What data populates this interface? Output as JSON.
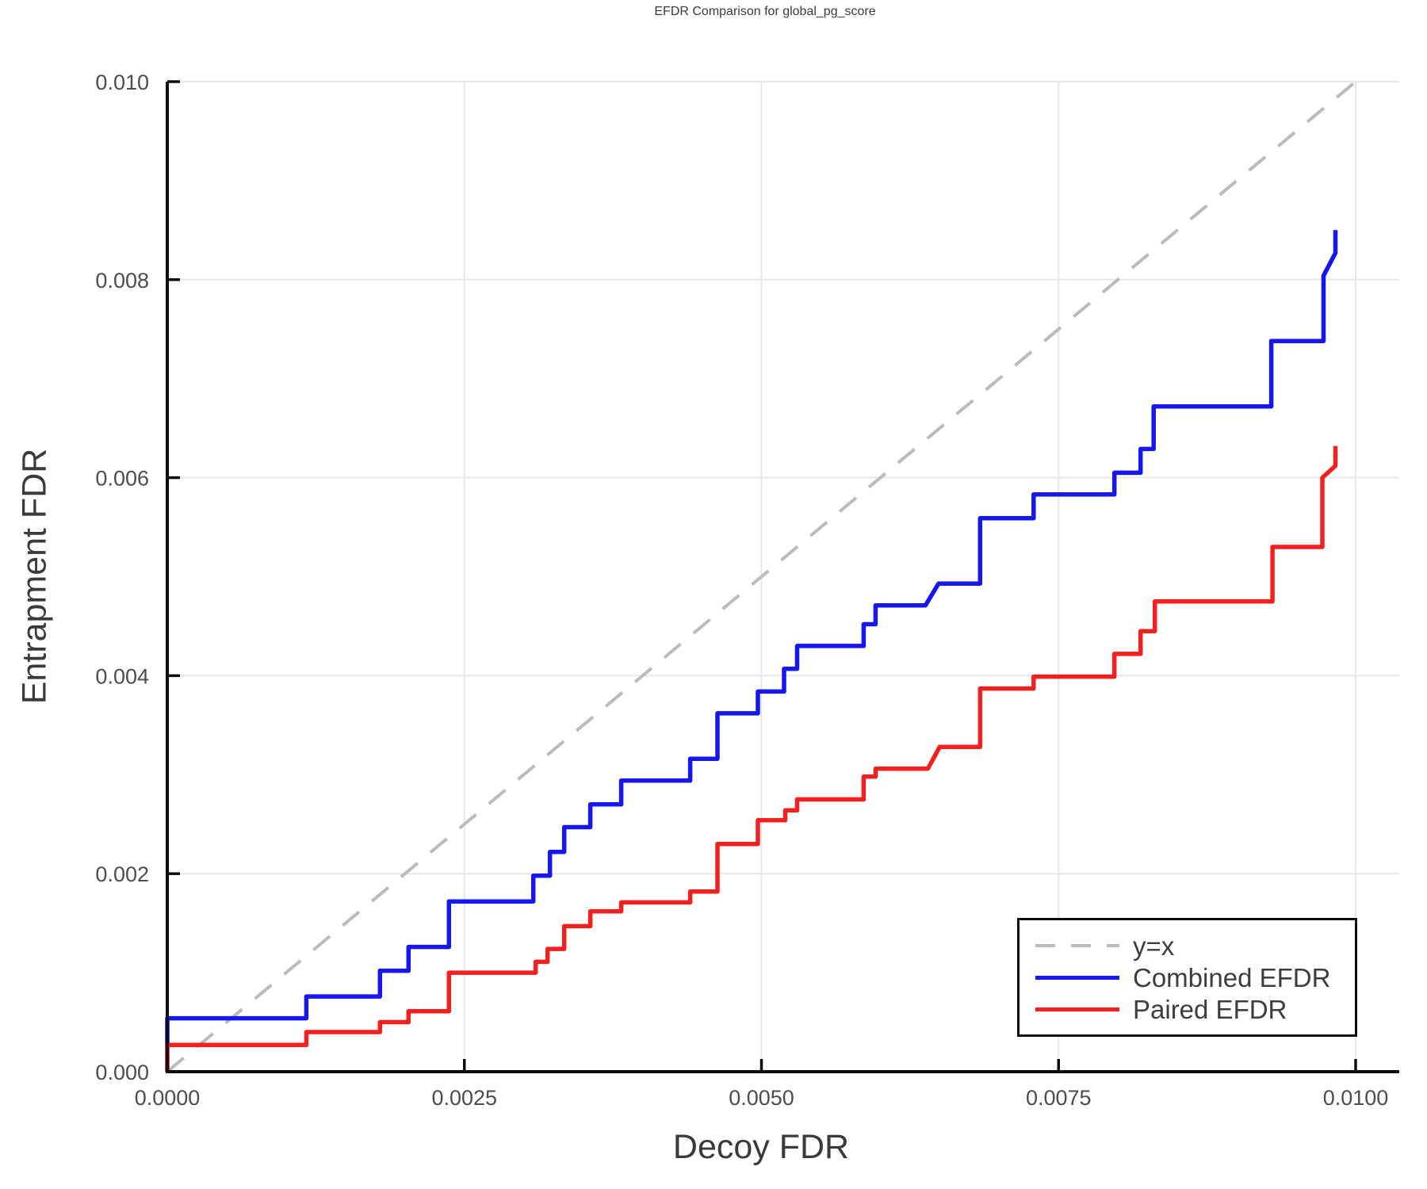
{
  "title": "EFDR Comparison for global_pg_score",
  "chart_data": {
    "type": "line",
    "subtype": "step",
    "title": "EFDR Comparison for global_pg_score",
    "xlabel": "Decoy FDR",
    "ylabel": "Entrapment FDR",
    "xlim": [
      0.0,
      0.01037
    ],
    "ylim": [
      0.0,
      0.01
    ],
    "grid": true,
    "tick_direction": "in",
    "x_ticks": {
      "values": [
        0.0,
        0.0025,
        0.005,
        0.0075,
        0.01
      ],
      "labels": [
        "0.0000",
        "0.0025",
        "0.0050",
        "0.0075",
        "0.0100"
      ]
    },
    "y_ticks": {
      "values": [
        0.0,
        0.002,
        0.004,
        0.006,
        0.008,
        0.01
      ],
      "labels": [
        "0.000",
        "0.002",
        "0.004",
        "0.006",
        "0.008",
        "0.010"
      ]
    },
    "legend_position": "bottom-right",
    "reference_line": {
      "name": "y=x",
      "style": "dashed",
      "color": "#bbbbbb",
      "from": [
        0.0,
        0.0
      ],
      "to": [
        0.01,
        0.01
      ]
    },
    "series": [
      {
        "name": "Combined EFDR",
        "color": "#1616f0",
        "points": [
          [
            0.0,
            0.0
          ],
          [
            0.0,
            0.00054
          ],
          [
            0.00117,
            0.00054
          ],
          [
            0.00117,
            0.00076
          ],
          [
            0.00179,
            0.00076
          ],
          [
            0.00179,
            0.00102
          ],
          [
            0.00203,
            0.00102
          ],
          [
            0.00203,
            0.00126
          ],
          [
            0.00237,
            0.00126
          ],
          [
            0.00237,
            0.00172
          ],
          [
            0.00308,
            0.00172
          ],
          [
            0.00308,
            0.00198
          ],
          [
            0.00322,
            0.00198
          ],
          [
            0.00322,
            0.00222
          ],
          [
            0.00334,
            0.00222
          ],
          [
            0.00334,
            0.00247
          ],
          [
            0.00356,
            0.00247
          ],
          [
            0.00356,
            0.0027
          ],
          [
            0.00382,
            0.0027
          ],
          [
            0.00382,
            0.00294
          ],
          [
            0.0044,
            0.00294
          ],
          [
            0.0044,
            0.00316
          ],
          [
            0.00463,
            0.00316
          ],
          [
            0.00463,
            0.00362
          ],
          [
            0.00497,
            0.00362
          ],
          [
            0.00497,
            0.00384
          ],
          [
            0.00519,
            0.00384
          ],
          [
            0.00519,
            0.00407
          ],
          [
            0.0053,
            0.00407
          ],
          [
            0.0053,
            0.0043
          ],
          [
            0.00586,
            0.0043
          ],
          [
            0.00586,
            0.00452
          ],
          [
            0.00596,
            0.00452
          ],
          [
            0.00596,
            0.00471
          ],
          [
            0.00638,
            0.00471
          ],
          [
            0.00649,
            0.00493
          ],
          [
            0.00684,
            0.00493
          ],
          [
            0.00684,
            0.00559
          ],
          [
            0.00729,
            0.00559
          ],
          [
            0.00729,
            0.00583
          ],
          [
            0.00797,
            0.00583
          ],
          [
            0.00797,
            0.00605
          ],
          [
            0.00819,
            0.00605
          ],
          [
            0.00819,
            0.00629
          ],
          [
            0.0083,
            0.00629
          ],
          [
            0.0083,
            0.00672
          ],
          [
            0.00929,
            0.00672
          ],
          [
            0.00929,
            0.00738
          ],
          [
            0.00973,
            0.00738
          ],
          [
            0.00973,
            0.00804
          ],
          [
            0.00983,
            0.00827
          ],
          [
            0.00983,
            0.0085
          ]
        ]
      },
      {
        "name": "Paired EFDR",
        "color": "#f42020",
        "points": [
          [
            0.0,
            0.0
          ],
          [
            0.0,
            0.00027
          ],
          [
            0.00117,
            0.00027
          ],
          [
            0.00117,
            0.0004
          ],
          [
            0.00179,
            0.0004
          ],
          [
            0.00179,
            0.0005
          ],
          [
            0.00203,
            0.0005
          ],
          [
            0.00203,
            0.00061
          ],
          [
            0.00237,
            0.00061
          ],
          [
            0.00237,
            0.001
          ],
          [
            0.0031,
            0.001
          ],
          [
            0.0031,
            0.00111
          ],
          [
            0.0032,
            0.00111
          ],
          [
            0.0032,
            0.00124
          ],
          [
            0.00334,
            0.00124
          ],
          [
            0.00334,
            0.00147
          ],
          [
            0.00356,
            0.00147
          ],
          [
            0.00356,
            0.00162
          ],
          [
            0.00382,
            0.00162
          ],
          [
            0.00382,
            0.00171
          ],
          [
            0.0044,
            0.00171
          ],
          [
            0.0044,
            0.00182
          ],
          [
            0.00463,
            0.00182
          ],
          [
            0.00463,
            0.0023
          ],
          [
            0.00497,
            0.0023
          ],
          [
            0.00497,
            0.00254
          ],
          [
            0.0052,
            0.00254
          ],
          [
            0.0052,
            0.00264
          ],
          [
            0.0053,
            0.00264
          ],
          [
            0.0053,
            0.00275
          ],
          [
            0.00586,
            0.00275
          ],
          [
            0.00586,
            0.00298
          ],
          [
            0.00596,
            0.00298
          ],
          [
            0.00596,
            0.00306
          ],
          [
            0.0064,
            0.00306
          ],
          [
            0.0065,
            0.00328
          ],
          [
            0.00684,
            0.00328
          ],
          [
            0.00684,
            0.00387
          ],
          [
            0.00729,
            0.00387
          ],
          [
            0.00729,
            0.00399
          ],
          [
            0.00797,
            0.00399
          ],
          [
            0.00797,
            0.00422
          ],
          [
            0.00819,
            0.00422
          ],
          [
            0.00819,
            0.00445
          ],
          [
            0.00831,
            0.00445
          ],
          [
            0.00831,
            0.00475
          ],
          [
            0.0093,
            0.00475
          ],
          [
            0.0093,
            0.0053
          ],
          [
            0.00972,
            0.0053
          ],
          [
            0.00972,
            0.006
          ],
          [
            0.00983,
            0.00612
          ],
          [
            0.00983,
            0.00632
          ]
        ]
      }
    ]
  },
  "legend": {
    "entries": [
      {
        "label": "y=x",
        "color": "#bbbbbb",
        "dashed": true
      },
      {
        "label": "Combined EFDR",
        "color": "#1616f0",
        "dashed": false
      },
      {
        "label": "Paired EFDR",
        "color": "#f42020",
        "dashed": false
      }
    ]
  },
  "colors": {
    "grid": "#e8e8e8",
    "spine": "#0d0d0d",
    "tick_label": "#4d4d4d",
    "text": "#3a3a3a",
    "background": "#ffffff"
  }
}
